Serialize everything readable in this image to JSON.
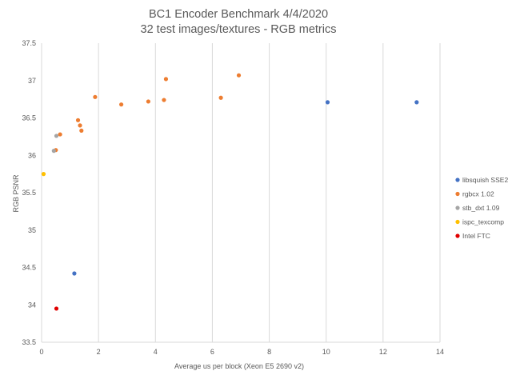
{
  "chart_data": {
    "type": "scatter",
    "title": "BC1 Encoder Benchmark 4/4/2020",
    "subtitle": "32 test images/textures - RGB metrics",
    "xlabel": "Average us per block (Xeon E5 2690 v2)",
    "ylabel": "RGB PSNR",
    "xlim": [
      0,
      14
    ],
    "ylim": [
      33.5,
      37.5
    ],
    "x_ticks": [
      "0",
      "2",
      "4",
      "6",
      "8",
      "10",
      "12",
      "14"
    ],
    "y_ticks": [
      "33.5",
      "34",
      "34.5",
      "35",
      "35.5",
      "36",
      "36.5",
      "37",
      "37.5"
    ],
    "grid": "vertical",
    "legend_position": "right",
    "series": [
      {
        "name": "libsquish SSE2",
        "color": "#4472c4",
        "points": [
          [
            1.15,
            34.42
          ],
          [
            10.05,
            36.71
          ],
          [
            13.18,
            36.71
          ]
        ]
      },
      {
        "name": "rgbcx 1.02",
        "color": "#ed7d31",
        "points": [
          [
            0.5,
            36.07
          ],
          [
            0.65,
            36.28
          ],
          [
            1.28,
            36.47
          ],
          [
            1.35,
            36.4
          ],
          [
            1.4,
            36.33
          ],
          [
            1.88,
            36.78
          ],
          [
            2.8,
            36.68
          ],
          [
            3.75,
            36.72
          ],
          [
            4.3,
            36.74
          ],
          [
            4.37,
            37.02
          ],
          [
            6.3,
            36.77
          ],
          [
            6.93,
            37.07
          ]
        ]
      },
      {
        "name": "stb_dxt 1.09",
        "color": "#a5a5a5",
        "points": [
          [
            0.43,
            36.06
          ],
          [
            0.52,
            36.26
          ]
        ]
      },
      {
        "name": "ispc_texcomp",
        "color": "#ffc000",
        "points": [
          [
            0.07,
            35.75
          ]
        ]
      },
      {
        "name": "Intel FTC",
        "color": "#e00000",
        "points": [
          [
            0.52,
            33.95
          ]
        ]
      }
    ]
  }
}
